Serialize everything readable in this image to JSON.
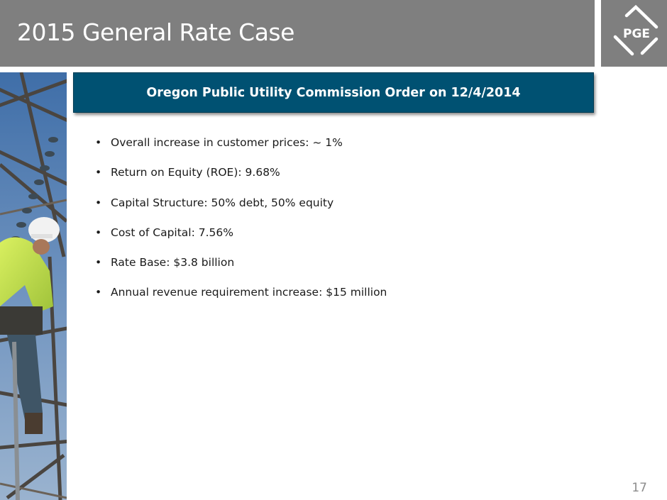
{
  "slide": {
    "title": "2015 General Rate Case",
    "page_number": "17"
  },
  "logo": {
    "text": "PGE",
    "icon": "pge-logo-icon"
  },
  "photo": {
    "icon": "lineman-photo"
  },
  "header": {
    "text": "Oregon Public Utility Commission Order on 12/4/2014"
  },
  "bullets": [
    "Overall increase in customer prices: ~ 1%",
    "Return on Equity (ROE): 9.68%",
    "Capital Structure: 50% debt, 50% equity",
    "Cost of Capital: 7.56%",
    "Rate Base: $3.8 billion",
    "Annual revenue requirement increase: $15 million"
  ],
  "colors": {
    "title_bar": "#7f7f7f",
    "header_box": "#005172",
    "body_text": "#1a1a1a",
    "page_number": "#8c8c8c"
  }
}
